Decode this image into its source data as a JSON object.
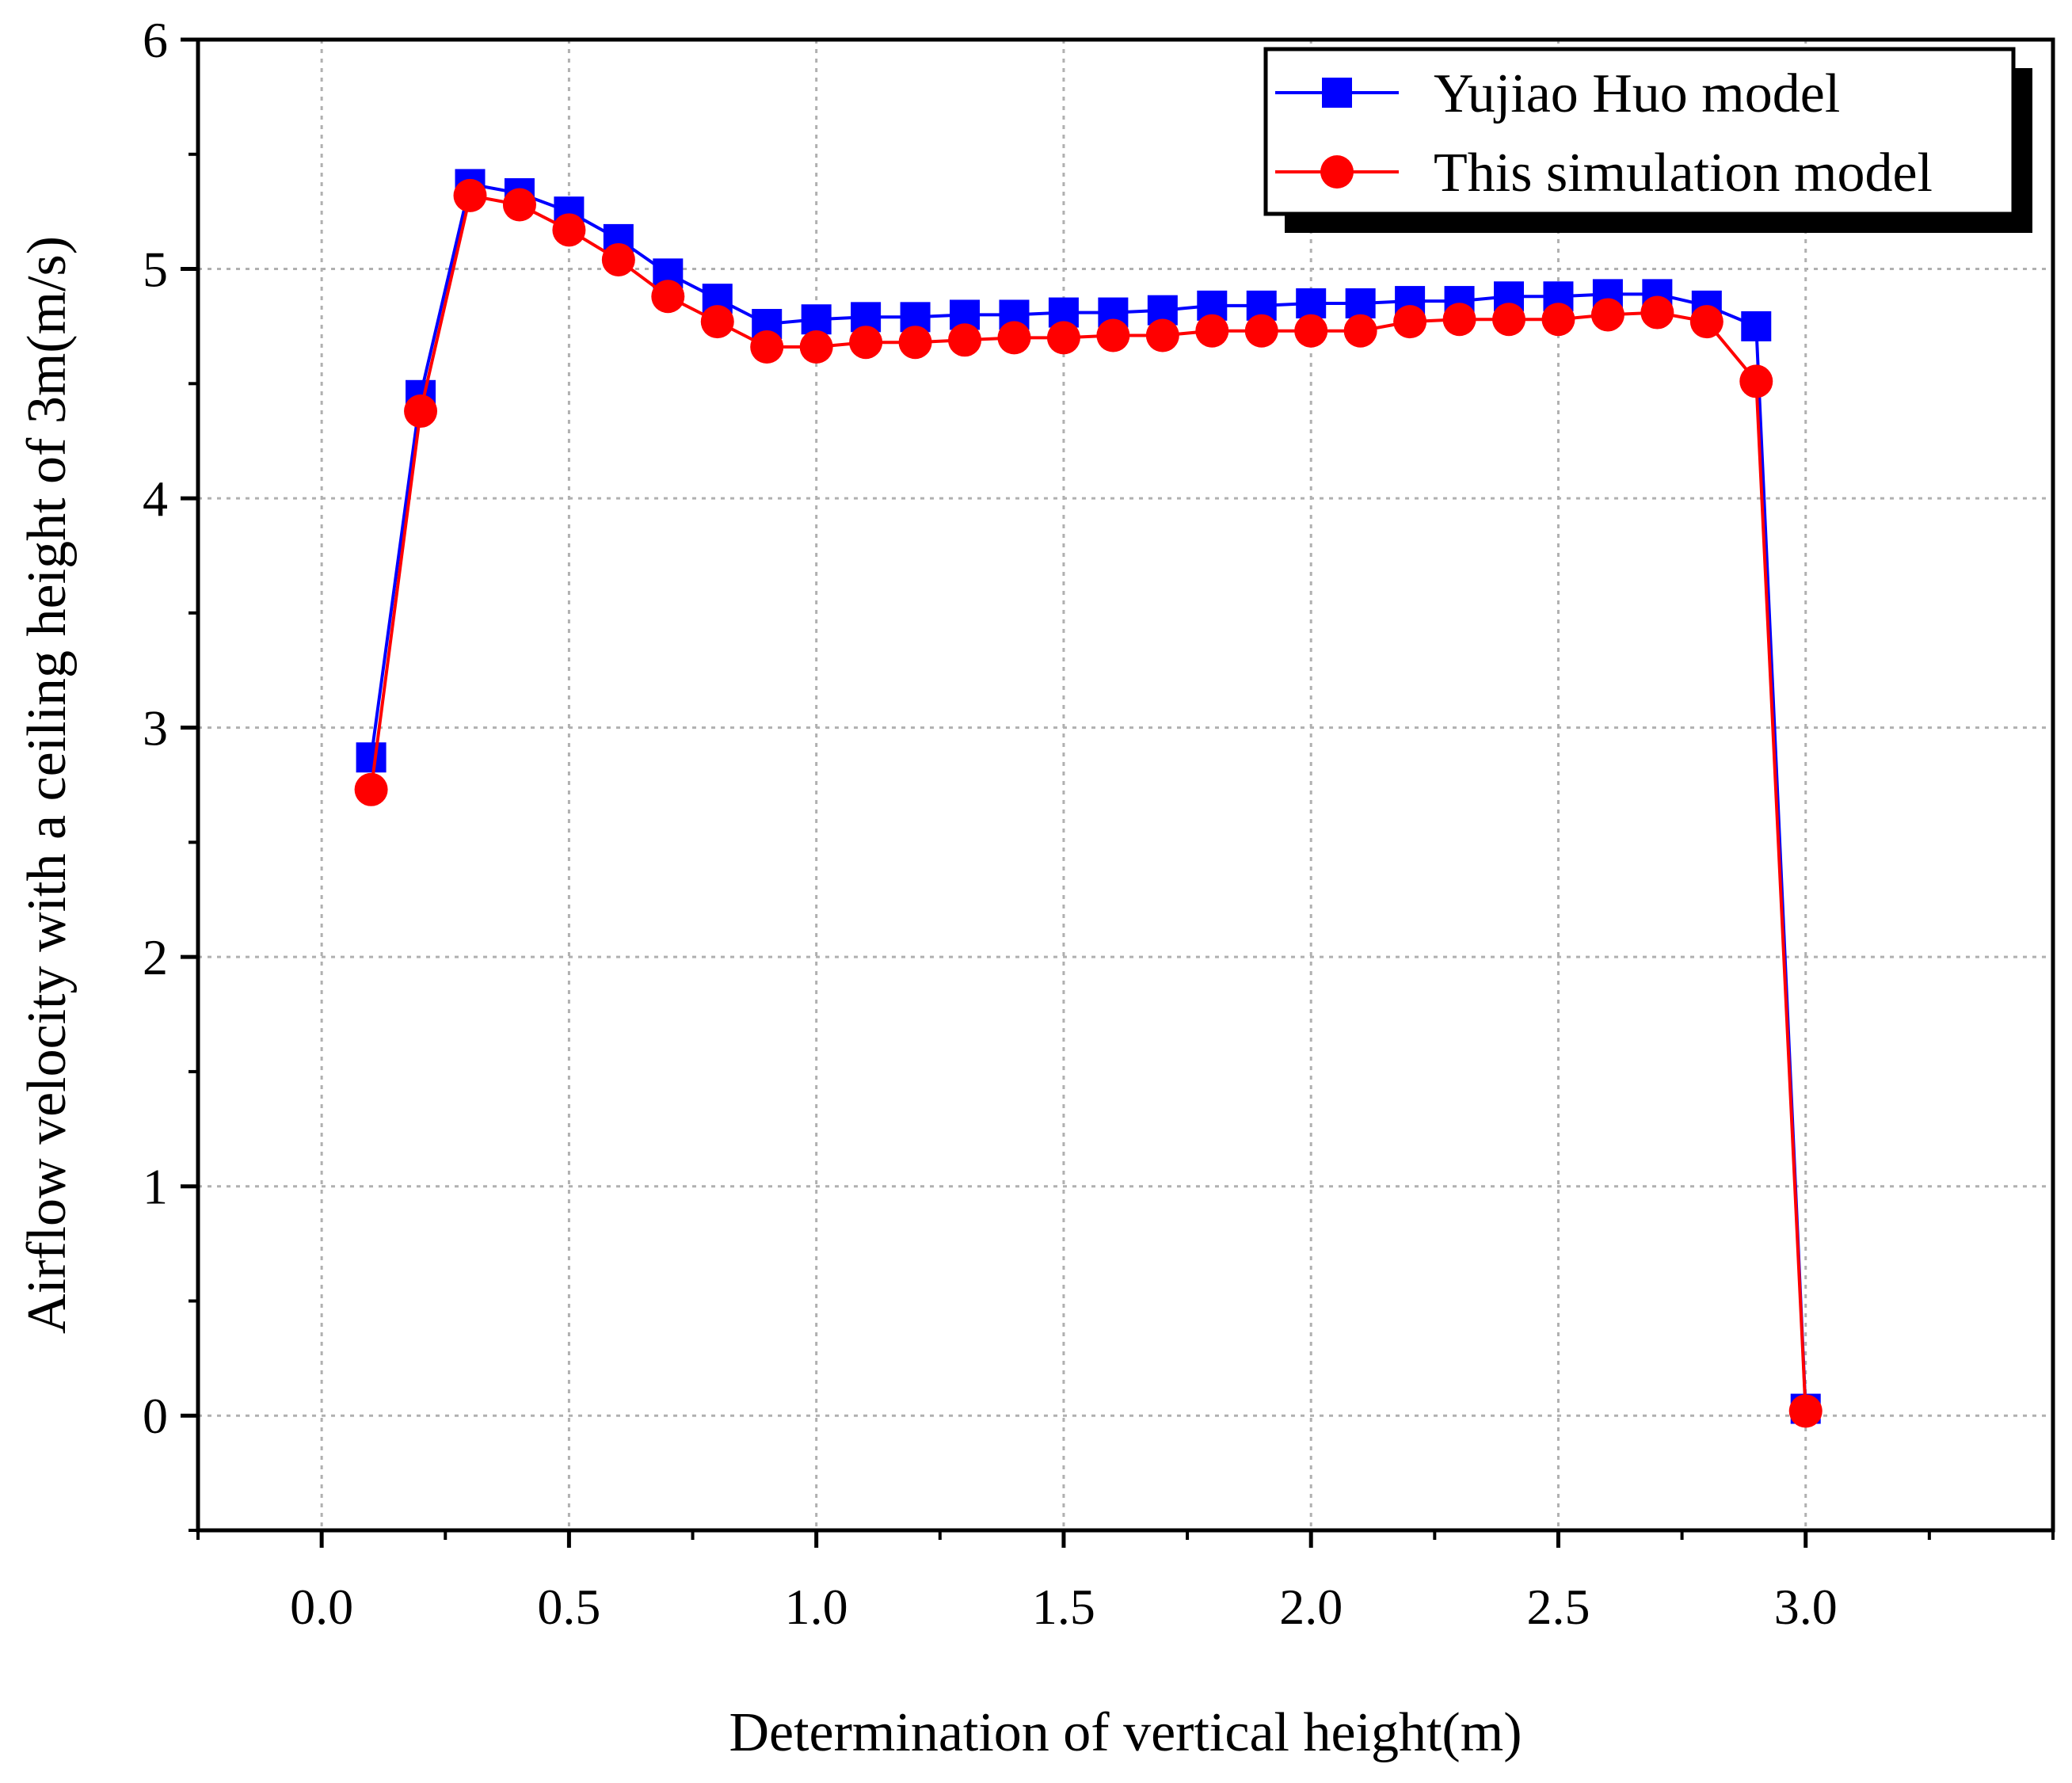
{
  "chart_data": {
    "type": "line",
    "title": "",
    "xlabel": "Determination of vertical height(m)",
    "ylabel": "Airflow velocity with a ceiling height of 3m(m/s)",
    "xlim": [
      -0.25,
      3.5
    ],
    "ylim": [
      -0.5,
      6
    ],
    "x_ticks": [
      0.0,
      0.5,
      1.0,
      1.5,
      2.0,
      2.5,
      3.0
    ],
    "x_tick_labels": [
      "0.0",
      "0.5",
      "1.0",
      "1.5",
      "2.0",
      "2.5",
      "3.0"
    ],
    "y_ticks": [
      0,
      1,
      2,
      3,
      4,
      5,
      6
    ],
    "y_tick_labels": [
      "0",
      "1",
      "2",
      "3",
      "4",
      "5",
      "6"
    ],
    "grid": true,
    "legend_position": "top-right",
    "x": [
      0.1,
      0.2,
      0.3,
      0.4,
      0.5,
      0.6,
      0.7,
      0.8,
      0.9,
      1.0,
      1.1,
      1.2,
      1.3,
      1.4,
      1.5,
      1.6,
      1.7,
      1.8,
      1.9,
      2.0,
      2.1,
      2.2,
      2.3,
      2.4,
      2.5,
      2.6,
      2.7,
      2.8,
      2.9,
      3.0
    ],
    "series": [
      {
        "name": "Yujiao Huo model",
        "color": "#0000ff",
        "marker": "square",
        "values": [
          2.87,
          4.45,
          5.37,
          5.33,
          5.25,
          5.13,
          4.98,
          4.87,
          4.76,
          4.78,
          4.79,
          4.79,
          4.8,
          4.8,
          4.81,
          4.81,
          4.82,
          4.84,
          4.84,
          4.85,
          4.85,
          4.86,
          4.86,
          4.88,
          4.88,
          4.89,
          4.89,
          4.84,
          4.75,
          0.03
        ]
      },
      {
        "name": "This simulation model",
        "color": "#ff0000",
        "marker": "circle",
        "values": [
          2.73,
          4.38,
          5.32,
          5.28,
          5.17,
          5.04,
          4.88,
          4.77,
          4.66,
          4.66,
          4.68,
          4.68,
          4.69,
          4.7,
          4.7,
          4.71,
          4.71,
          4.73,
          4.73,
          4.73,
          4.73,
          4.77,
          4.78,
          4.78,
          4.78,
          4.8,
          4.81,
          4.77,
          4.51,
          0.02
        ]
      }
    ]
  }
}
